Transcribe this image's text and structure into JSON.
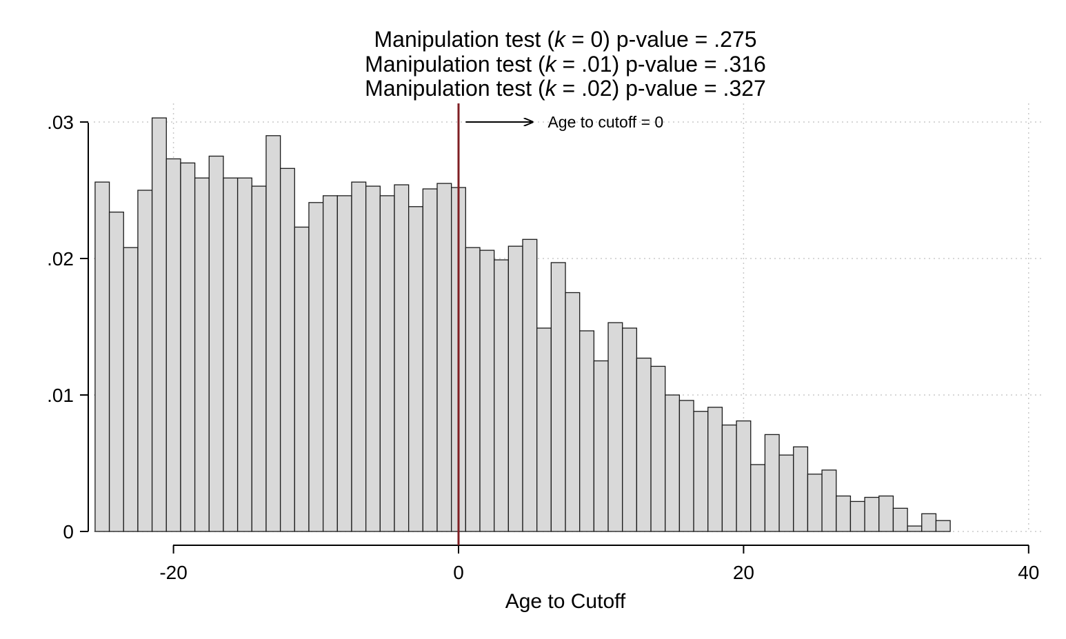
{
  "chart_data": {
    "type": "bar",
    "subtype": "histogram",
    "title_lines": [
      {
        "pre": "Manipulation test (",
        "k": "k",
        "post": " = 0) p-value = .275"
      },
      {
        "pre": "Manipulation test (",
        "k": "k",
        "post": " = .01) p-value = .316"
      },
      {
        "pre": "Manipulation test (",
        "k": "k",
        "post": " = .02) p-value = .327"
      }
    ],
    "xlabel": "Age to Cutoff",
    "ylabel": "",
    "xlim": [
      -25.5,
      40
    ],
    "ylim": [
      0,
      0.03
    ],
    "x_ticks": [
      -20,
      0,
      20,
      40
    ],
    "x_tick_labels": [
      "-20",
      "0",
      "20",
      "40"
    ],
    "y_ticks": [
      0,
      0.01,
      0.02,
      0.03
    ],
    "y_tick_labels": [
      "0",
      ".01",
      ".02",
      ".03"
    ],
    "grid": true,
    "bin_width": 1,
    "bin_start": -25.5,
    "values": [
      0.0256,
      0.0234,
      0.0208,
      0.025,
      0.0303,
      0.0273,
      0.027,
      0.0259,
      0.0275,
      0.0259,
      0.0259,
      0.0253,
      0.029,
      0.0266,
      0.0223,
      0.0241,
      0.0246,
      0.0246,
      0.0256,
      0.0253,
      0.0246,
      0.0254,
      0.0238,
      0.0251,
      0.0255,
      0.0252,
      0.0208,
      0.0206,
      0.0199,
      0.0209,
      0.0214,
      0.0149,
      0.0197,
      0.0175,
      0.0147,
      0.0125,
      0.0153,
      0.0149,
      0.0127,
      0.0121,
      0.01,
      0.0096,
      0.0088,
      0.0091,
      0.0078,
      0.0081,
      0.0049,
      0.0071,
      0.0056,
      0.0062,
      0.0042,
      0.0045,
      0.0026,
      0.0022,
      0.0025,
      0.0026,
      0.0017,
      0.0004,
      0.0013,
      0.0008
    ],
    "cutoff_line": {
      "x": 0,
      "color": "#7f1f24"
    },
    "annotation": {
      "text": "Age to cutoff = 0",
      "arrow_from_x": 0.5,
      "arrow_to_x": 5.2,
      "y": 0.03
    },
    "colors": {
      "bar_fill": "#d9d9d9",
      "bar_stroke": "#1a1a1a",
      "grid": "#c8c8c8",
      "axis": "#000000"
    }
  }
}
